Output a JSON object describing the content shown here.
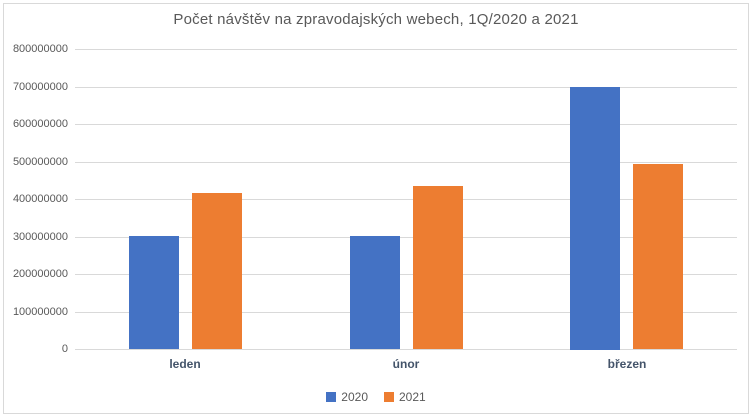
{
  "frame": {
    "background": "#ffffff",
    "border_color": "#d9d9d9"
  },
  "chart_data": {
    "type": "bar",
    "title": "Počet návštěv na zpravodajských webech, 1Q/2020 a 2021",
    "categories": [
      "leden",
      "únor",
      "březen"
    ],
    "series": [
      {
        "name": "2020",
        "color": "#4472c4",
        "values": [
          302000000,
          302000000,
          700000000
        ]
      },
      {
        "name": "2021",
        "color": "#ed7d31",
        "values": [
          415000000,
          435000000,
          493000000
        ]
      }
    ],
    "xlabel": "",
    "ylabel": "",
    "ylim": [
      0,
      800000000
    ],
    "yticks": [
      0,
      100000000,
      200000000,
      300000000,
      400000000,
      500000000,
      600000000,
      700000000,
      800000000
    ],
    "grid": true,
    "gridline_color": "#d9d9d9",
    "axis_text_color": "#595959",
    "category_text_color": "#44546a",
    "legend_position": "bottom"
  }
}
